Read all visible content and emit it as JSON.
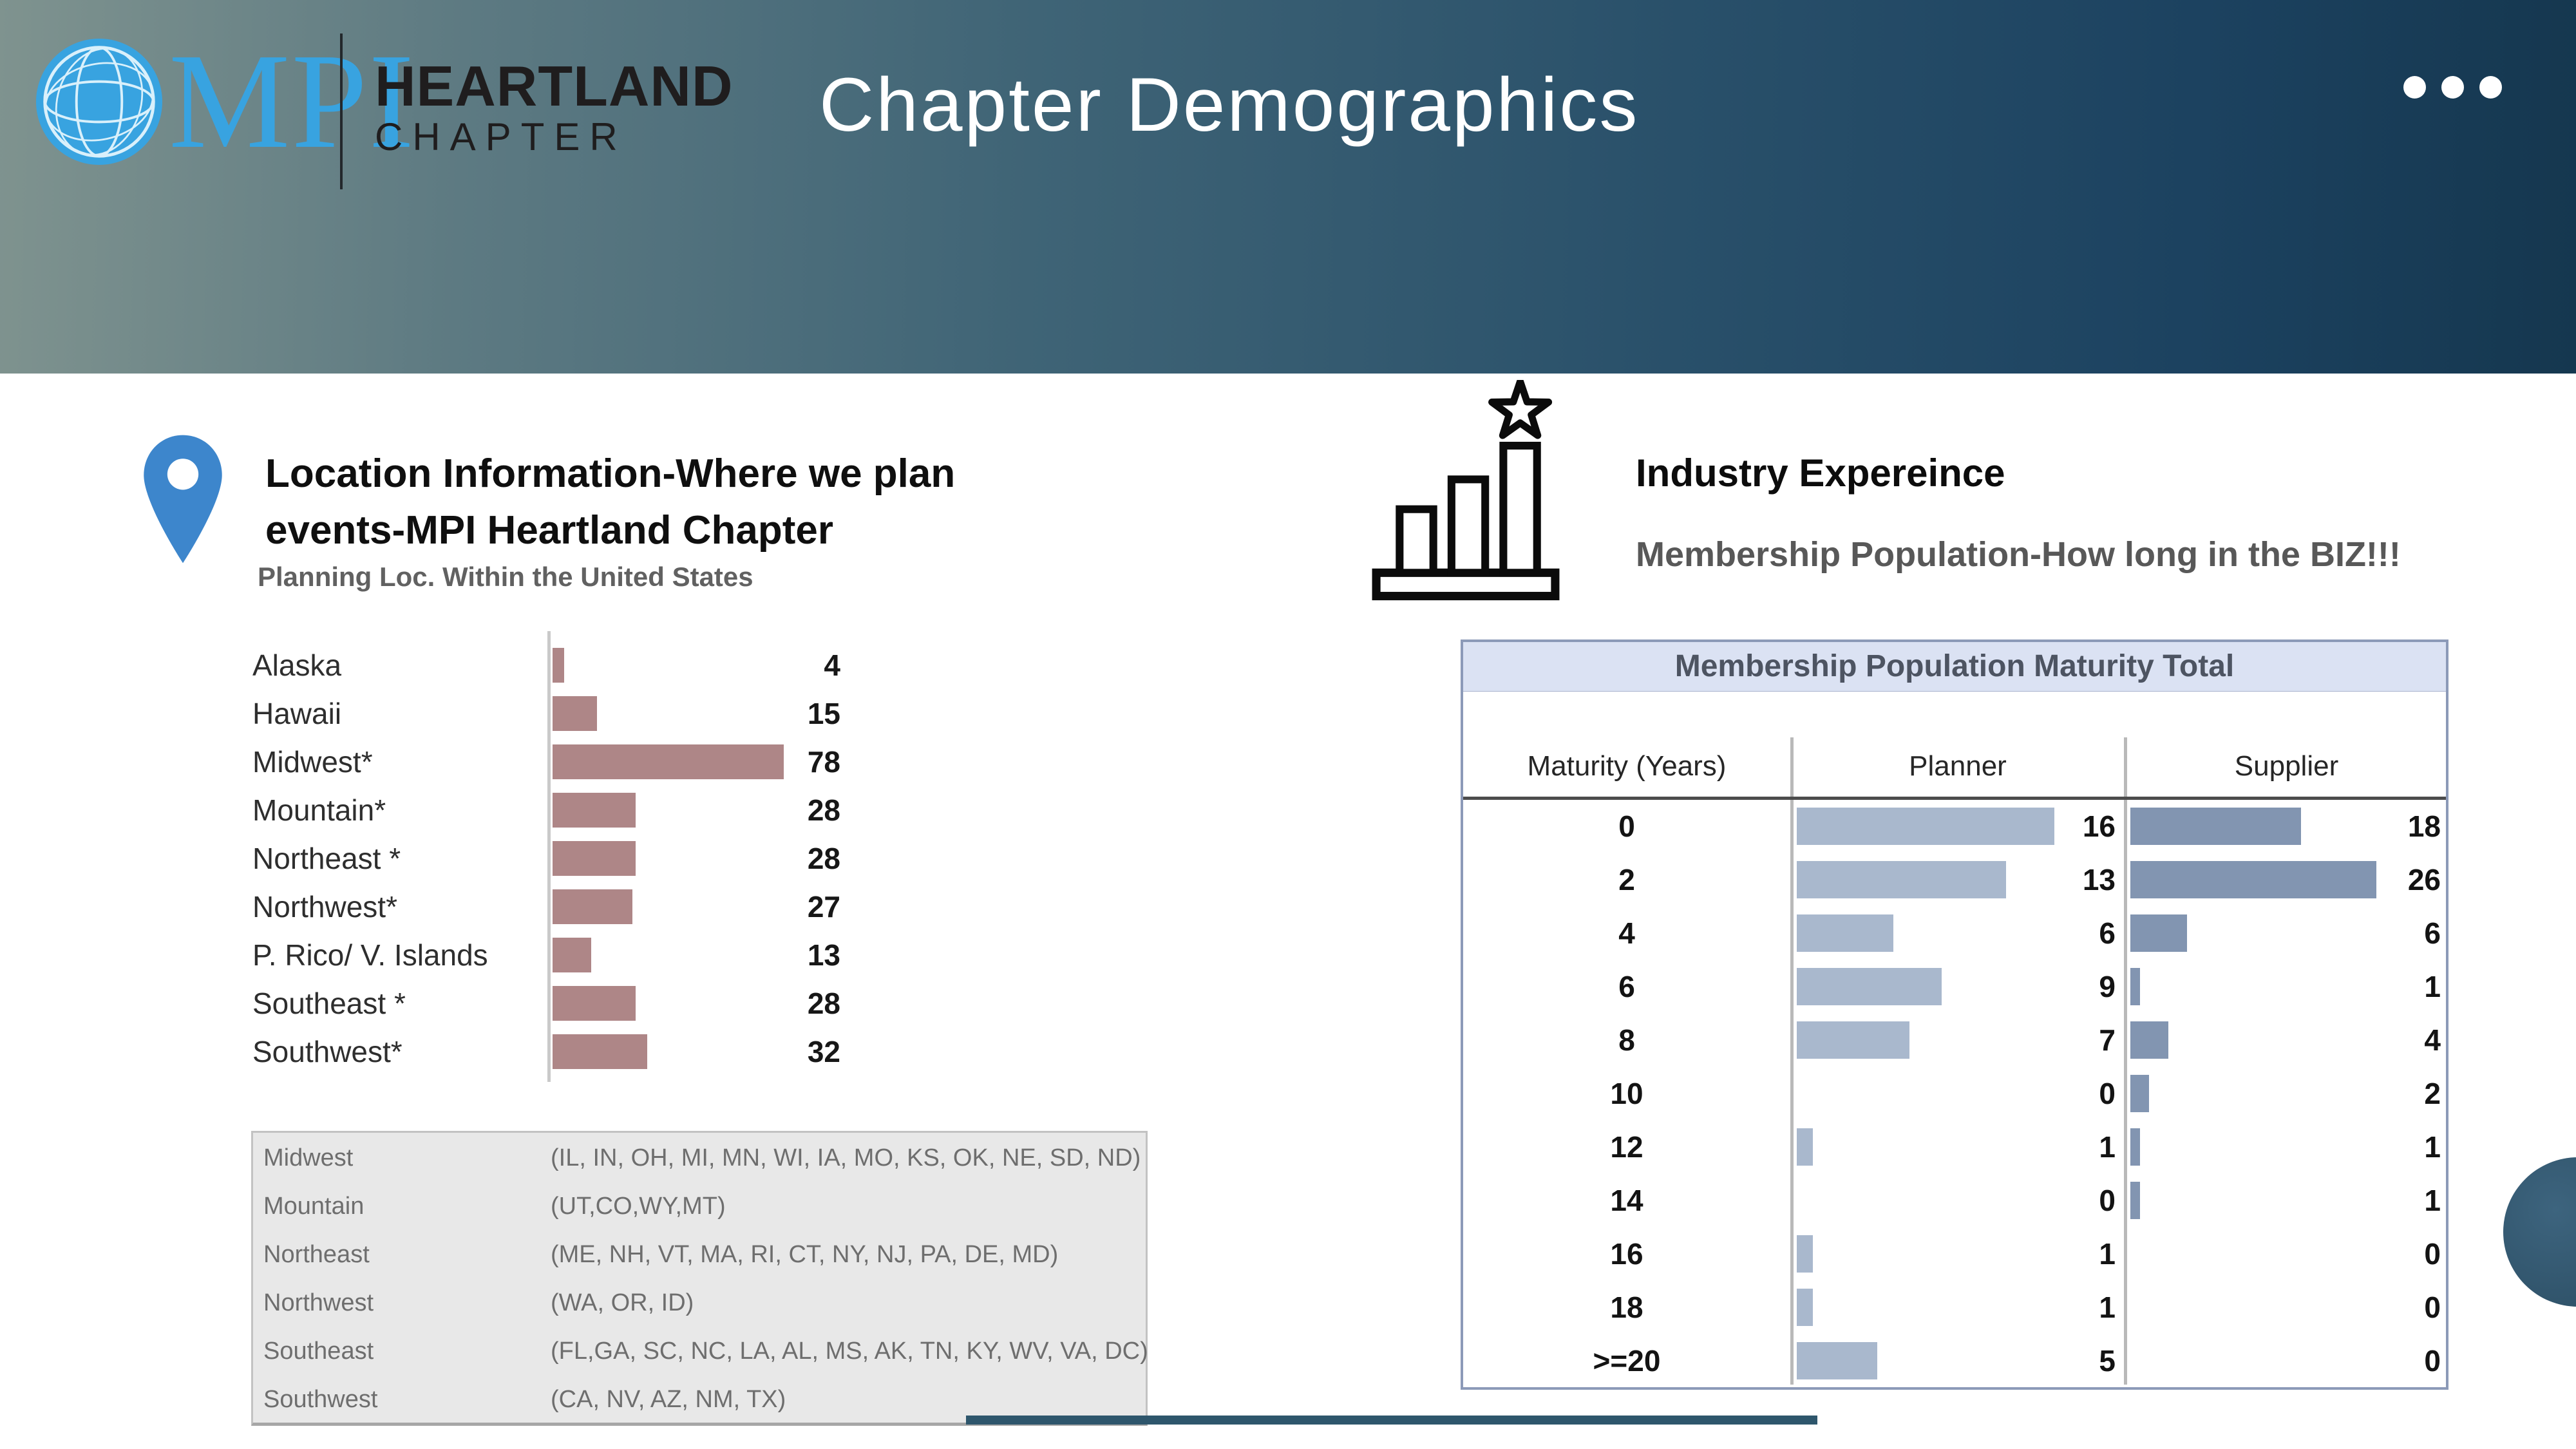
{
  "header": {
    "logo": {
      "wordmark": "MPI",
      "org_line1": "HEARTLAND",
      "org_line2": "CHAPTER"
    },
    "title": "Chapter Demographics"
  },
  "left_section": {
    "heading": "Location Information-Where we plan events-MPI Heartland Chapter",
    "chart_title": "Planning Loc. Within the United States",
    "regions_table": [
      {
        "region": "Midwest",
        "states": "(IL, IN, OH, MI, MN, WI, IA, MO, KS, OK, NE, SD, ND)"
      },
      {
        "region": "Mountain",
        "states": "(UT,CO,WY,MT)"
      },
      {
        "region": "Northeast",
        "states": "(ME, NH, VT, MA, RI, CT, NY, NJ, PA, DE, MD)"
      },
      {
        "region": "Northwest",
        "states": "(WA, OR, ID)"
      },
      {
        "region": "Southeast",
        "states": "(FL,GA, SC, NC, LA, AL, MS, AK, TN, KY, WV, VA, DC)"
      },
      {
        "region": "Southwest",
        "states": "(CA, NV, AZ, NM, TX)"
      }
    ]
  },
  "right_section": {
    "heading": "Industry Expereince",
    "subheading": "Membership Population-How long in the BIZ!!!",
    "table_title": "Membership Population Maturity Total",
    "columns": [
      "Maturity (Years)",
      "Planner",
      "Supplier"
    ]
  },
  "colors": {
    "location_bar": "#ae8687",
    "planner_bar": "#a9b8cd",
    "supplier_bar": "#8295b1",
    "table_header_band": "#dbe2f3",
    "table_border": "#8c9ab8",
    "brand_blue": "#38a3e0",
    "pin_blue": "#3d86cc",
    "band_gradient_left": "#7f938f",
    "band_gradient_right": "#15374f",
    "bottom_line": "#2e566c"
  },
  "chart_data": [
    {
      "type": "bar",
      "orientation": "horizontal",
      "title": "Planning Loc. Within the United States",
      "categories": [
        "Alaska",
        "Hawaii",
        "Midwest*",
        "Mountain*",
        "Northeast *",
        "Northwest*",
        "P. Rico/ V. Islands",
        "Southeast *",
        "Southwest*"
      ],
      "values": [
        4,
        15,
        78,
        28,
        28,
        27,
        13,
        28,
        32
      ],
      "xlim": [
        0,
        80
      ],
      "data_labels": true,
      "grid": false,
      "bar_color": "#ae8687"
    },
    {
      "type": "bar",
      "orientation": "horizontal",
      "title": "Membership Population Maturity Total",
      "categories": [
        "0",
        "2",
        "4",
        "6",
        "8",
        "10",
        "12",
        "14",
        "16",
        "18",
        ">=20"
      ],
      "series": [
        {
          "name": "Planner",
          "values": [
            16,
            13,
            6,
            9,
            7,
            0,
            1,
            0,
            1,
            1,
            5
          ],
          "color": "#a9b8cd"
        },
        {
          "name": "Supplier",
          "values": [
            18,
            26,
            6,
            1,
            4,
            2,
            1,
            1,
            0,
            0,
            0
          ],
          "color": "#8295b1"
        }
      ],
      "category_axis_label": "Maturity (Years)",
      "data_labels": true,
      "grid": false,
      "legend_position": "column-headers"
    }
  ]
}
